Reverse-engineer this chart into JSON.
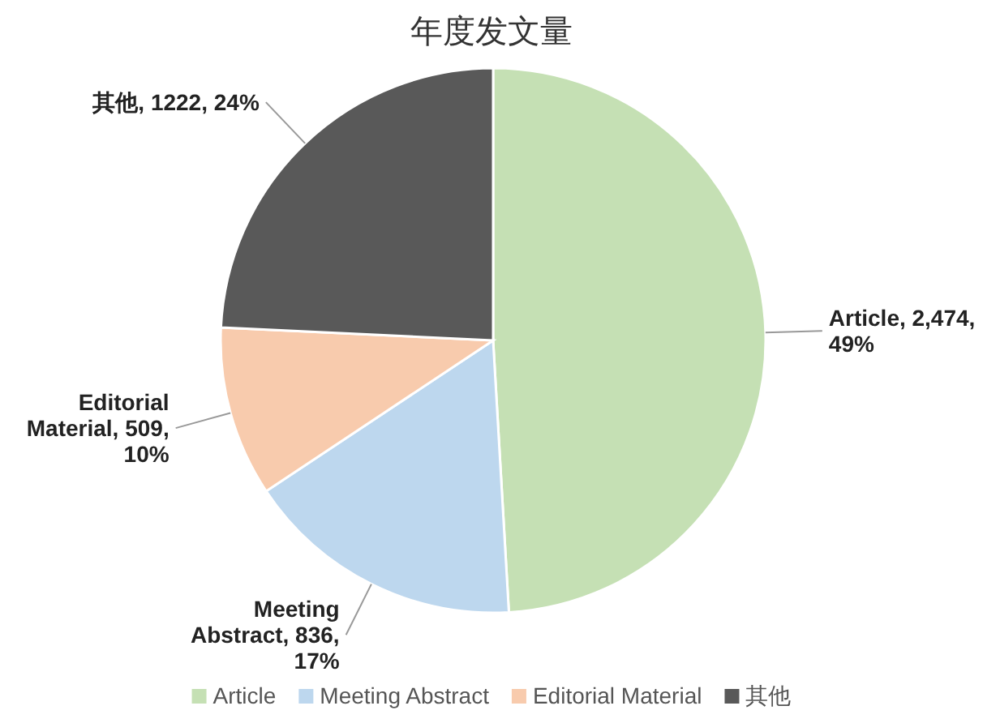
{
  "chart_data": {
    "type": "pie",
    "title": "年度发文量",
    "categories": [
      "Article",
      "Meeting Abstract",
      "Editorial Material",
      "其他"
    ],
    "values": [
      2474,
      836,
      509,
      1222
    ],
    "colors": [
      "#c5e0b4",
      "#bdd7ee",
      "#f8cbad",
      "#595959"
    ],
    "value_labels": [
      "Article, 2,474, 49%",
      "Meeting Abstract, 836, 17%",
      "Editorial Material, 509, 10%",
      "其他, 1222, 24%"
    ],
    "legend": "bottom"
  }
}
